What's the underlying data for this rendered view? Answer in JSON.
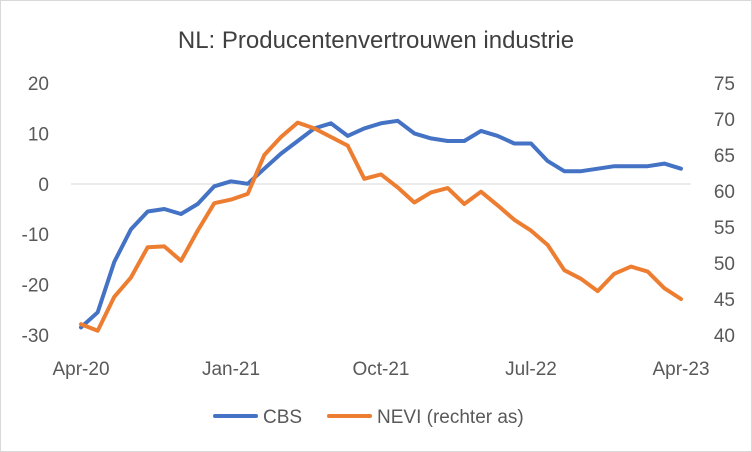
{
  "chart_data": {
    "type": "line",
    "title": "NL: Producentenvertrouwen industrie",
    "xlabel": "",
    "ylabel": "",
    "x_tick_labels": [
      "Apr-20",
      "Jan-21",
      "Oct-21",
      "Jul-22",
      "Apr-23"
    ],
    "x_start": "Apr-20",
    "x_end": "Apr-23",
    "left_axis": {
      "ylim": [
        -30,
        20
      ],
      "ticks": [
        "-30",
        "-20",
        "-10",
        "0",
        "10",
        "20"
      ]
    },
    "right_axis": {
      "ylim": [
        40,
        75
      ],
      "ticks": [
        "40",
        "45",
        "50",
        "55",
        "60",
        "65",
        "70",
        "75"
      ]
    },
    "grid": false,
    "legend_position": "bottom",
    "series": [
      {
        "name": "CBS",
        "axis": "left",
        "color": "#4472C4",
        "values": [
          -28.5,
          -25.5,
          -15.5,
          -9,
          -5.5,
          -5,
          -6,
          -4,
          -0.5,
          0.5,
          0,
          3,
          6,
          8.5,
          11,
          12,
          9.5,
          11,
          12,
          12.5,
          10,
          9,
          8.5,
          8.5,
          10.5,
          9.5,
          8,
          8,
          4.5,
          2.5,
          2.5,
          3,
          3.5,
          3.5,
          3.5,
          4,
          3
        ]
      },
      {
        "name": "NEVI (rechter as)",
        "axis": "right",
        "color": "#ED7D31",
        "values": [
          41.5,
          40.6,
          45.3,
          48,
          52.2,
          52.3,
          50.3,
          54.5,
          58.3,
          58.8,
          59.6,
          65,
          67.5,
          69.5,
          68.7,
          67.5,
          66.3,
          61.7,
          62.3,
          60.5,
          58.4,
          59.8,
          60.4,
          58.2,
          59.9,
          58,
          56,
          54.5,
          52.5,
          49,
          47.8,
          46.1,
          48.5,
          49.5,
          48.8,
          46.5,
          45
        ]
      }
    ]
  }
}
